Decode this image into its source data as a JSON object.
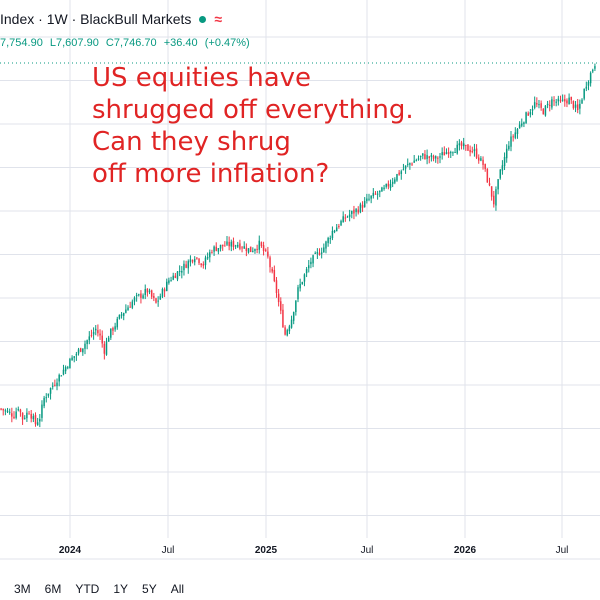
{
  "header": {
    "title": "Index · 1W · BlackBull Markets",
    "status_dot_color": "#089981",
    "wave_icon": "≈",
    "wave_color": "#f23645"
  },
  "ohlc": {
    "open": "7,754.90",
    "low": "L7,607.90",
    "close": "C7,746.70",
    "change": "+36.40",
    "change_pct": "(+0.47%)",
    "color": "#089981"
  },
  "annotation": {
    "lines": [
      "US equities have",
      "shrugged off everything.",
      "Can they shrug",
      "off more inflation?"
    ],
    "color": "#e02424"
  },
  "range_buttons": [
    "3M",
    "6M",
    "YTD",
    "1Y",
    "5Y",
    "All"
  ],
  "colors": {
    "up": "#089981",
    "down": "#f23645",
    "grid": "#e0e3eb"
  },
  "chart_data": {
    "type": "candlestick",
    "interval": "1W",
    "x_tick_labels": [
      {
        "label": "2024",
        "major": true
      },
      {
        "label": "Jul",
        "major": false
      },
      {
        "label": "2025",
        "major": true
      },
      {
        "label": "Jul",
        "major": false
      },
      {
        "label": "2026",
        "major": true
      },
      {
        "label": "Jul",
        "major": false
      }
    ],
    "close_path": [
      [
        0,
        4500
      ],
      [
        6,
        4440
      ],
      [
        8,
        4520
      ],
      [
        10,
        4410
      ],
      [
        13,
        4480
      ],
      [
        16,
        4360
      ],
      [
        18,
        4420
      ],
      [
        20,
        4600
      ],
      [
        26,
        4780
      ],
      [
        32,
        4950
      ],
      [
        38,
        5090
      ],
      [
        44,
        5250
      ],
      [
        46,
        5180
      ],
      [
        48,
        5050
      ],
      [
        50,
        5190
      ],
      [
        56,
        5390
      ],
      [
        62,
        5530
      ],
      [
        68,
        5610
      ],
      [
        72,
        5490
      ],
      [
        78,
        5710
      ],
      [
        84,
        5820
      ],
      [
        90,
        5940
      ],
      [
        94,
        5860
      ],
      [
        98,
        6000
      ],
      [
        104,
        6040
      ],
      [
        110,
        6050
      ],
      [
        116,
        5990
      ],
      [
        120,
        6050
      ],
      [
        124,
        5920
      ],
      [
        128,
        5600
      ],
      [
        132,
        5200
      ],
      [
        135,
        5350
      ],
      [
        138,
        5620
      ],
      [
        144,
        5890
      ],
      [
        150,
        6020
      ],
      [
        154,
        6170
      ],
      [
        160,
        6300
      ],
      [
        166,
        6380
      ],
      [
        172,
        6490
      ],
      [
        178,
        6560
      ],
      [
        184,
        6700
      ],
      [
        190,
        6810
      ],
      [
        196,
        6880
      ],
      [
        202,
        6850
      ],
      [
        208,
        6930
      ],
      [
        214,
        6970
      ],
      [
        220,
        6920
      ],
      [
        224,
        6800
      ],
      [
        227,
        6580
      ],
      [
        229,
        6440
      ],
      [
        232,
        6720
      ],
      [
        236,
        7000
      ],
      [
        242,
        7200
      ],
      [
        248,
        7370
      ],
      [
        252,
        7300
      ],
      [
        256,
        7400
      ],
      [
        260,
        7380
      ],
      [
        264,
        7410
      ],
      [
        268,
        7300
      ],
      [
        272,
        7560
      ],
      [
        276,
        7748
      ]
    ],
    "y_range": [
      4000,
      7800
    ]
  }
}
